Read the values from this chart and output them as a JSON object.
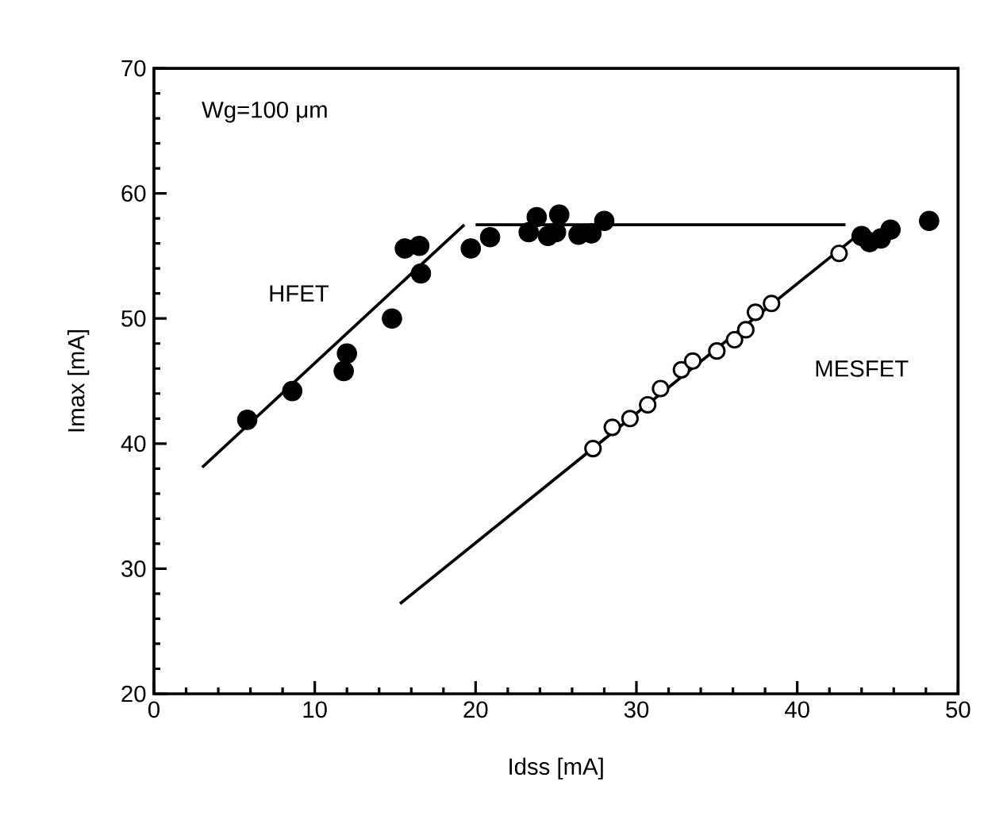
{
  "chart_data": {
    "type": "scatter",
    "xlabel": "Idss [mA]",
    "ylabel": "Imax [mA]",
    "xlim": [
      0,
      50
    ],
    "ylim": [
      20,
      70
    ],
    "xticks": [
      0,
      10,
      20,
      30,
      40,
      50
    ],
    "yticks": [
      20,
      30,
      40,
      50,
      60,
      70
    ],
    "marker": "circle",
    "annotations": [
      "Wg=100 μm"
    ],
    "series": [
      {
        "name": "HFET",
        "color": "#000000",
        "x": [
          5.8,
          8.6,
          11.8,
          12,
          14.8,
          15.6,
          16.5,
          16.6,
          19.7,
          20.9,
          23.3,
          23.8,
          24.2,
          24.5,
          25.2,
          25,
          26.4,
          27.2,
          28,
          44,
          44.5,
          45.2,
          45.8,
          48.2
        ],
        "values": [
          41.9,
          44.2,
          45.8,
          47.2,
          50,
          55.6,
          55.8,
          53.6,
          55.6,
          56.5,
          56.9,
          58.1,
          null,
          56.6,
          58.3,
          56.9,
          56.7,
          56.8,
          57.8,
          56.6,
          56.1,
          56.4,
          57.1,
          57.8
        ]
      },
      {
        "name": "MESFET",
        "color": "#000000",
        "x": [
          27.3,
          28.5,
          29.6,
          30.7,
          31.5,
          32.8,
          33.5,
          35,
          36.1,
          36.8,
          37.4,
          38.4,
          42.6
        ],
        "values": [
          39.6,
          41.3,
          42,
          43.1,
          44.4,
          45.9,
          46.6,
          47.4,
          48.3,
          49.1,
          50.5,
          51.2,
          55.2
        ]
      },
      {
        "type": "line",
        "marker": "none",
        "color": "#000000",
        "x": [
          3,
          19.3
        ],
        "values": [
          38.1,
          57.5
        ]
      },
      {
        "type": "line",
        "marker": "none",
        "color": "#000000",
        "x": [
          20,
          43
        ],
        "values": [
          57.5,
          57.5
        ]
      },
      {
        "type": "line",
        "marker": "none",
        "color": "#000000",
        "x": [
          15.3,
          43.5
        ],
        "values": [
          27.2,
          56.4
        ]
      }
    ]
  }
}
